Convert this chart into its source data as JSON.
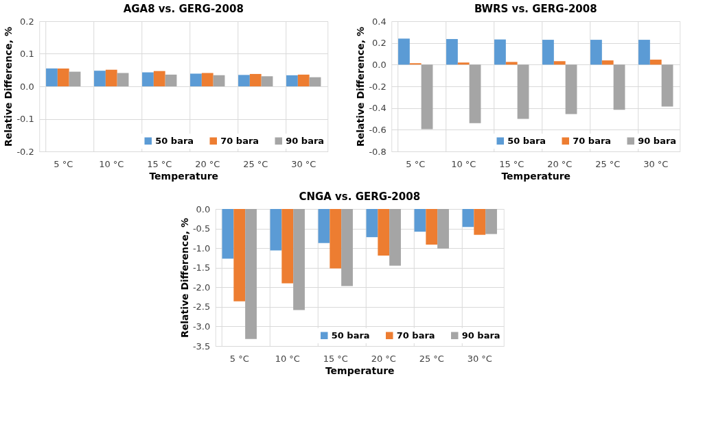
{
  "chart_data": [
    {
      "type": "bar",
      "title": "AGA8 vs. GERG-2008",
      "xlabel": "Temperature",
      "ylabel": "Relative Difference, %",
      "categories": [
        "5 °C",
        "10 °C",
        "15 °C",
        "20 °C",
        "25 °C",
        "30 °C"
      ],
      "series": [
        {
          "name": "50 bara",
          "color": "#5b9bd5",
          "values": [
            0.055,
            0.048,
            0.043,
            0.039,
            0.035,
            0.034
          ]
        },
        {
          "name": "70 bara",
          "color": "#ed7d31",
          "values": [
            0.055,
            0.051,
            0.047,
            0.041,
            0.038,
            0.036
          ]
        },
        {
          "name": "90 bara",
          "color": "#a5a5a5",
          "values": [
            0.045,
            0.041,
            0.036,
            0.034,
            0.031,
            0.028
          ]
        }
      ],
      "ylim": [
        -0.2,
        0.2
      ],
      "yticks": [
        {
          "value": -0.2,
          "label": "-0.2"
        },
        {
          "value": -0.1,
          "label": "-0.1"
        },
        {
          "value": 0,
          "label": "0.0"
        },
        0.1,
        0.2
      ],
      "grid": true,
      "legend": "bottom right"
    },
    {
      "type": "bar",
      "title": "BWRS vs. GERG-2008",
      "xlabel": "Temperature",
      "ylabel": "Relative Difference, %",
      "categories": [
        "5 °C",
        "10 °C",
        "15 °C",
        "20 °C",
        "25 °C",
        "30 °C"
      ],
      "series": [
        {
          "name": "50 bara",
          "color": "#5b9bd5",
          "values": [
            0.24,
            0.236,
            0.232,
            0.229,
            0.229,
            0.229
          ]
        },
        {
          "name": "70 bara",
          "color": "#ed7d31",
          "values": [
            0.013,
            0.02,
            0.025,
            0.032,
            0.039,
            0.046
          ]
        },
        {
          "name": "90 bara",
          "color": "#a5a5a5",
          "values": [
            -0.595,
            -0.54,
            -0.5,
            -0.455,
            -0.416,
            -0.386
          ]
        }
      ],
      "ylim": [
        -0.8,
        0.4
      ],
      "yticks": [
        {
          "value": -0.8,
          "label": "-0.8"
        },
        {
          "value": -0.6,
          "label": "-0.6"
        },
        {
          "value": -0.4,
          "label": "-0.4"
        },
        {
          "value": -0.2,
          "label": "-0.2"
        },
        {
          "value": 0,
          "label": "0.0"
        },
        0.2,
        0.4
      ],
      "grid": true,
      "legend": "bottom right"
    },
    {
      "type": "bar",
      "title": "CNGA vs. GERG-2008",
      "xlabel": "Temperature",
      "ylabel": "Relative Difference, %",
      "categories": [
        "5 °C",
        "10 °C",
        "15 °C",
        "20 °C",
        "25 °C",
        "30 °C"
      ],
      "series": [
        {
          "name": "50 bara",
          "color": "#5b9bd5",
          "values": [
            -1.27,
            -1.06,
            -0.87,
            -0.72,
            -0.58,
            -0.46
          ]
        },
        {
          "name": "70 bara",
          "color": "#ed7d31",
          "values": [
            -2.36,
            -1.9,
            -1.52,
            -1.19,
            -0.91,
            -0.66
          ]
        },
        {
          "name": "90 bara",
          "color": "#a5a5a5",
          "values": [
            -3.32,
            -2.58,
            -1.97,
            -1.45,
            -1.01,
            -0.64
          ]
        }
      ],
      "ylim": [
        -3.5,
        0
      ],
      "yticks": [
        {
          "value": -3.5,
          "label": "-3.5"
        },
        {
          "value": -3,
          "label": "-3.0"
        },
        {
          "value": -2.5,
          "label": "-2.5"
        },
        {
          "value": -2,
          "label": "-2.0"
        },
        {
          "value": -1.5,
          "label": "-1.5"
        },
        {
          "value": -1,
          "label": "-1.0"
        },
        {
          "value": -0.5,
          "label": "-0.5"
        },
        {
          "value": 0,
          "label": "0.0"
        }
      ],
      "grid": true,
      "legend": "bottom right"
    }
  ]
}
